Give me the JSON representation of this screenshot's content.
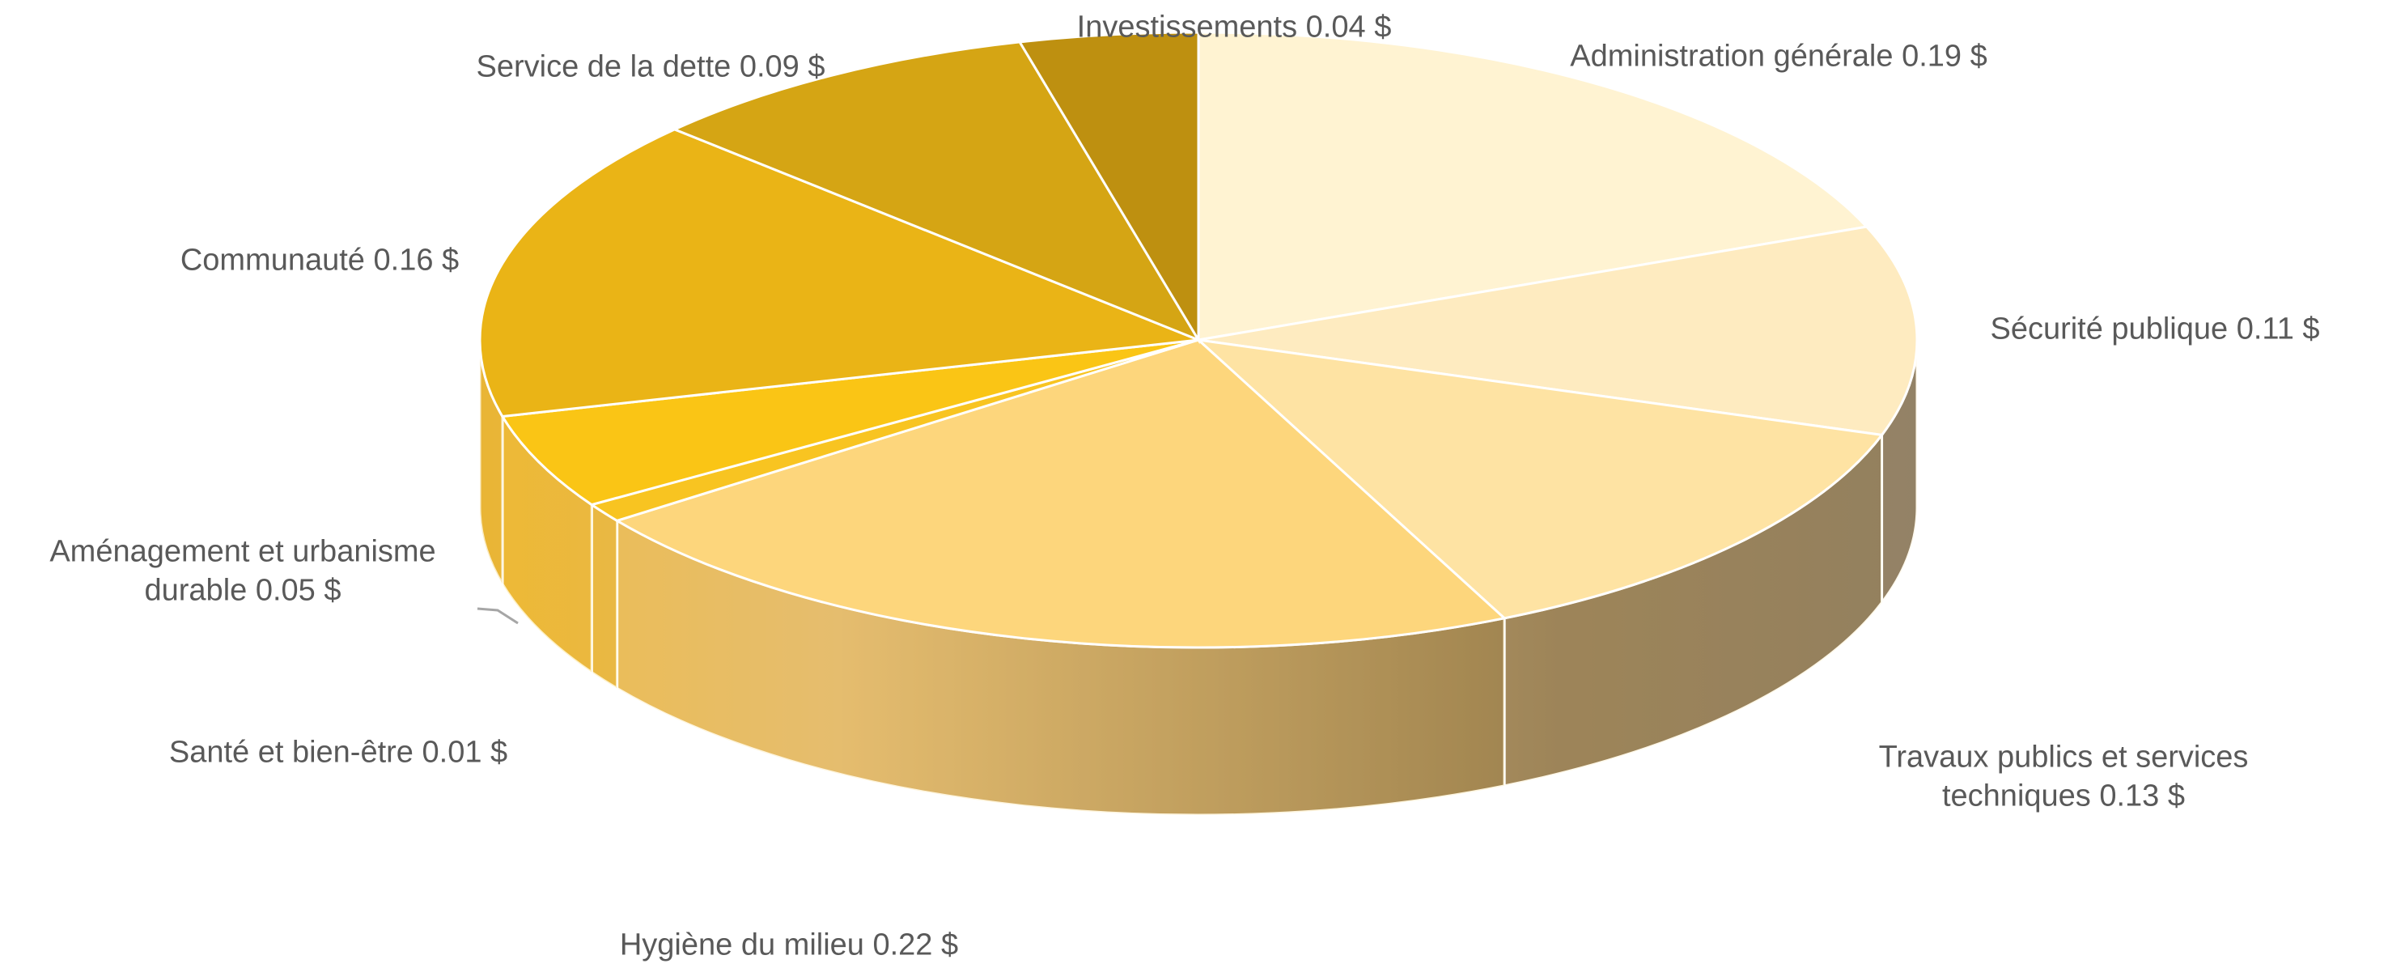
{
  "chart_data": {
    "type": "pie3d",
    "categories": [
      "Administration générale",
      "Sécurité publique",
      "Travaux publics et services techniques",
      "Hygiène du milieu",
      "Santé et bien-être",
      "Aménagement et urbanisme durable",
      "Communauté",
      "Service de la dette",
      "Investissements"
    ],
    "values": [
      0.19,
      0.11,
      0.13,
      0.22,
      0.01,
      0.05,
      0.16,
      0.09,
      0.04
    ],
    "value_labels": [
      "0.19 $",
      "0.11 $",
      "0.13 $",
      "0.22 $",
      "0.01 $",
      "0.05 $",
      "0.16 $",
      "0.09 $",
      "0.04 $"
    ],
    "colors": [
      "#fff3d2",
      "#feebc0",
      "#fee3a3",
      "#fdd67c",
      "#f8c421",
      "#fac515",
      "#eab416",
      "#d5a514",
      "#be9010"
    ]
  }
}
